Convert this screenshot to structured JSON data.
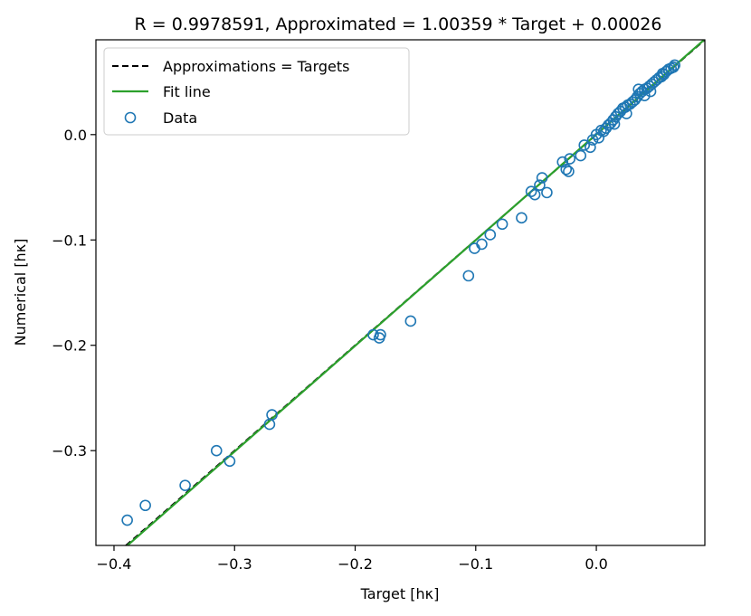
{
  "chart_data": {
    "type": "scatter",
    "title": "R = 0.9978591, Approximated = 1.00359 * Target + 0.00026",
    "xlabel": "Target [hκ]",
    "ylabel": "Numerical [hκ]",
    "xlim": [
      -0.415,
      0.09
    ],
    "ylim": [
      -0.39,
      0.09
    ],
    "x_ticks": [
      -0.4,
      -0.3,
      -0.2,
      -0.1,
      0.0
    ],
    "x_tick_labels": [
      "−0.4",
      "−0.3",
      "−0.2",
      "−0.1",
      "0.0"
    ],
    "y_ticks": [
      -0.3,
      -0.2,
      -0.1,
      0.0
    ],
    "y_tick_labels": [
      "−0.3",
      "−0.2",
      "−0.1",
      "0.0"
    ],
    "grid": false,
    "legend_position": "top-left",
    "fit": {
      "slope": 1.00359,
      "intercept": 0.00026
    },
    "legend": [
      {
        "label": "Approximations = Targets",
        "style": "dashed-line",
        "color": "#000000"
      },
      {
        "label": "Fit line",
        "style": "solid-line",
        "color": "#2ca02c"
      },
      {
        "label": "Data",
        "style": "open-circle",
        "color": "#1f77b4"
      }
    ],
    "points": [
      [
        -0.389,
        -0.366
      ],
      [
        -0.374,
        -0.352
      ],
      [
        -0.341,
        -0.333
      ],
      [
        -0.315,
        -0.3
      ],
      [
        -0.304,
        -0.31
      ],
      [
        -0.269,
        -0.266
      ],
      [
        -0.271,
        -0.275
      ],
      [
        -0.185,
        -0.19
      ],
      [
        -0.18,
        -0.193
      ],
      [
        -0.179,
        -0.19
      ],
      [
        -0.154,
        -0.177
      ],
      [
        -0.106,
        -0.134
      ],
      [
        -0.101,
        -0.108
      ],
      [
        -0.095,
        -0.104
      ],
      [
        -0.088,
        -0.095
      ],
      [
        -0.078,
        -0.085
      ],
      [
        -0.062,
        -0.079
      ],
      [
        -0.054,
        -0.054
      ],
      [
        -0.051,
        -0.057
      ],
      [
        -0.047,
        -0.048
      ],
      [
        -0.045,
        -0.041
      ],
      [
        -0.041,
        -0.055
      ],
      [
        -0.028,
        -0.026
      ],
      [
        -0.025,
        -0.033
      ],
      [
        -0.023,
        -0.035
      ],
      [
        -0.022,
        -0.023
      ],
      [
        -0.013,
        -0.02
      ],
      [
        -0.01,
        -0.01
      ],
      [
        -0.005,
        -0.012
      ],
      [
        -0.003,
        -0.005
      ],
      [
        0.0,
        0.0
      ],
      [
        0.002,
        -0.003
      ],
      [
        0.004,
        0.004
      ],
      [
        0.006,
        0.003
      ],
      [
        0.008,
        0.006
      ],
      [
        0.01,
        0.009
      ],
      [
        0.012,
        0.011
      ],
      [
        0.014,
        0.014
      ],
      [
        0.016,
        0.017
      ],
      [
        0.018,
        0.02
      ],
      [
        0.02,
        0.022
      ],
      [
        0.022,
        0.025
      ],
      [
        0.024,
        0.026
      ],
      [
        0.026,
        0.028
      ],
      [
        0.028,
        0.029
      ],
      [
        0.03,
        0.031
      ],
      [
        0.032,
        0.033
      ],
      [
        0.034,
        0.036
      ],
      [
        0.036,
        0.039
      ],
      [
        0.038,
        0.041
      ],
      [
        0.04,
        0.043
      ],
      [
        0.042,
        0.044
      ],
      [
        0.044,
        0.046
      ],
      [
        0.046,
        0.048
      ],
      [
        0.048,
        0.05
      ],
      [
        0.05,
        0.052
      ],
      [
        0.052,
        0.054
      ],
      [
        0.054,
        0.055
      ],
      [
        0.056,
        0.057
      ],
      [
        0.058,
        0.06
      ],
      [
        0.06,
        0.062
      ],
      [
        0.062,
        0.063
      ],
      [
        0.064,
        0.064
      ],
      [
        0.065,
        0.066
      ],
      [
        0.035,
        0.043
      ],
      [
        0.015,
        0.01
      ],
      [
        0.025,
        0.02
      ],
      [
        0.045,
        0.041
      ],
      [
        0.055,
        0.058
      ],
      [
        0.04,
        0.037
      ]
    ]
  }
}
